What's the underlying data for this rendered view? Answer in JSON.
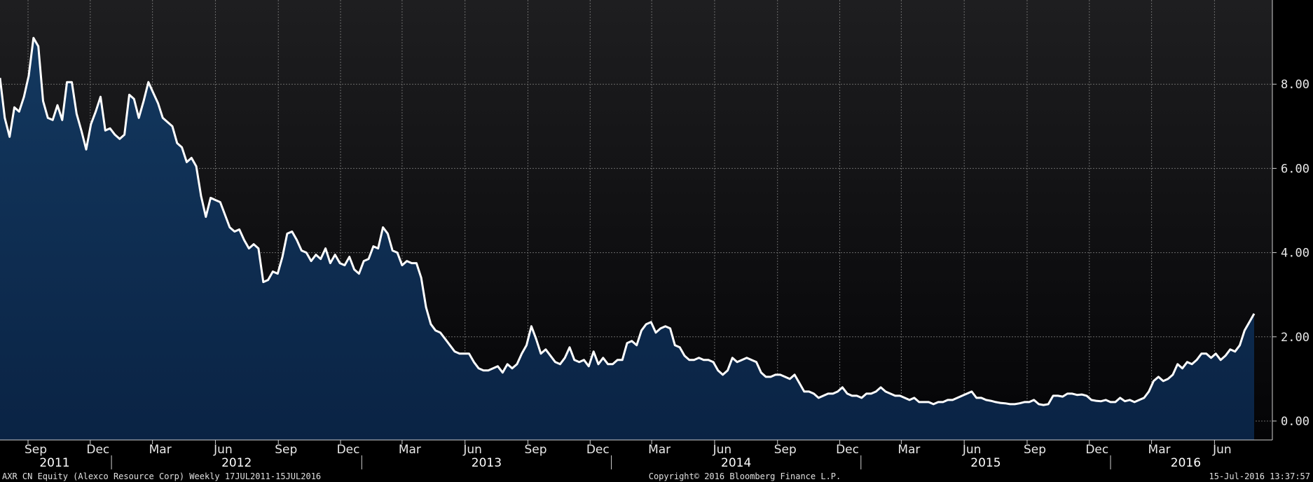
{
  "chart_data": {
    "type": "area",
    "x_start": "2011-07-22",
    "y_ticks": [
      0,
      2,
      4,
      6,
      8
    ],
    "y_tick_labels": [
      "0.00",
      "2.00",
      "4.00",
      "6.00",
      "8.00"
    ],
    "ylim": [
      -0.45,
      10.0
    ],
    "x_tick_labels": [
      {
        "label": "Sep",
        "date": "2011-09-01"
      },
      {
        "label": "Dec",
        "date": "2011-12-01"
      },
      {
        "label": "Mar",
        "date": "2012-03-01"
      },
      {
        "label": "Jun",
        "date": "2012-06-01"
      },
      {
        "label": "Sep",
        "date": "2012-09-01"
      },
      {
        "label": "Dec",
        "date": "2012-12-01"
      },
      {
        "label": "Mar",
        "date": "2013-03-01"
      },
      {
        "label": "Jun",
        "date": "2013-06-01"
      },
      {
        "label": "Sep",
        "date": "2013-09-01"
      },
      {
        "label": "Dec",
        "date": "2013-12-01"
      },
      {
        "label": "Mar",
        "date": "2014-03-01"
      },
      {
        "label": "Jun",
        "date": "2014-06-01"
      },
      {
        "label": "Sep",
        "date": "2014-09-01"
      },
      {
        "label": "Dec",
        "date": "2014-12-01"
      },
      {
        "label": "Mar",
        "date": "2015-03-01"
      },
      {
        "label": "Jun",
        "date": "2015-06-01"
      },
      {
        "label": "Sep",
        "date": "2015-09-01"
      },
      {
        "label": "Dec",
        "date": "2015-12-01"
      },
      {
        "label": "Mar",
        "date": "2016-03-01"
      },
      {
        "label": "Jun",
        "date": "2016-06-01"
      }
    ],
    "year_labels": [
      {
        "label": "2011",
        "date": "2011-07-22",
        "end": "2012-01-01"
      },
      {
        "label": "2012",
        "date": "2012-01-01",
        "end": "2013-01-01"
      },
      {
        "label": "2013",
        "date": "2013-01-01",
        "end": "2014-01-01"
      },
      {
        "label": "2014",
        "date": "2014-01-01",
        "end": "2015-01-01"
      },
      {
        "label": "2015",
        "date": "2015-01-01",
        "end": "2016-01-01"
      },
      {
        "label": "2016",
        "date": "2016-01-01",
        "end": "2016-08-08"
      }
    ],
    "grid": true,
    "values": [
      8.15,
      7.2,
      6.75,
      7.45,
      7.35,
      7.7,
      8.2,
      9.1,
      8.9,
      7.6,
      7.2,
      7.15,
      7.5,
      7.15,
      8.05,
      8.05,
      7.3,
      6.9,
      6.45,
      7.05,
      7.35,
      7.7,
      6.9,
      6.95,
      6.8,
      6.7,
      6.8,
      7.75,
      7.65,
      7.2,
      7.6,
      8.05,
      7.8,
      7.55,
      7.2,
      7.1,
      7.0,
      6.6,
      6.5,
      6.15,
      6.25,
      6.05,
      5.35,
      4.85,
      5.3,
      5.25,
      5.2,
      4.9,
      4.6,
      4.5,
      4.55,
      4.3,
      4.1,
      4.2,
      4.1,
      3.3,
      3.35,
      3.55,
      3.5,
      3.9,
      4.45,
      4.5,
      4.3,
      4.05,
      4.0,
      3.8,
      3.95,
      3.85,
      4.1,
      3.75,
      3.95,
      3.75,
      3.7,
      3.9,
      3.6,
      3.5,
      3.8,
      3.85,
      4.15,
      4.1,
      4.6,
      4.45,
      4.05,
      4.0,
      3.7,
      3.8,
      3.75,
      3.75,
      3.4,
      2.7,
      2.3,
      2.15,
      2.1,
      1.95,
      1.8,
      1.65,
      1.6,
      1.6,
      1.6,
      1.4,
      1.25,
      1.2,
      1.2,
      1.25,
      1.3,
      1.15,
      1.35,
      1.25,
      1.35,
      1.6,
      1.8,
      2.25,
      1.95,
      1.6,
      1.7,
      1.55,
      1.4,
      1.35,
      1.5,
      1.75,
      1.45,
      1.4,
      1.45,
      1.3,
      1.65,
      1.35,
      1.5,
      1.35,
      1.35,
      1.45,
      1.45,
      1.85,
      1.9,
      1.8,
      2.15,
      2.3,
      2.35,
      2.1,
      2.2,
      2.25,
      2.2,
      1.8,
      1.75,
      1.55,
      1.45,
      1.45,
      1.5,
      1.45,
      1.45,
      1.4,
      1.2,
      1.1,
      1.2,
      1.5,
      1.4,
      1.45,
      1.5,
      1.45,
      1.4,
      1.15,
      1.05,
      1.05,
      1.1,
      1.1,
      1.05,
      1.0,
      1.1,
      0.9,
      0.7,
      0.7,
      0.65,
      0.55,
      0.6,
      0.65,
      0.65,
      0.7,
      0.8,
      0.65,
      0.6,
      0.6,
      0.55,
      0.65,
      0.65,
      0.7,
      0.8,
      0.7,
      0.65,
      0.6,
      0.6,
      0.55,
      0.5,
      0.55,
      0.45,
      0.45,
      0.45,
      0.4,
      0.45,
      0.45,
      0.5,
      0.5,
      0.55,
      0.6,
      0.65,
      0.7,
      0.55,
      0.55,
      0.5,
      0.48,
      0.45,
      0.43,
      0.42,
      0.4,
      0.4,
      0.42,
      0.45,
      0.45,
      0.5,
      0.4,
      0.38,
      0.4,
      0.6,
      0.6,
      0.58,
      0.65,
      0.65,
      0.62,
      0.63,
      0.6,
      0.5,
      0.48,
      0.47,
      0.5,
      0.45,
      0.45,
      0.55,
      0.47,
      0.5,
      0.45,
      0.5,
      0.55,
      0.7,
      0.95,
      1.05,
      0.95,
      1.0,
      1.1,
      1.35,
      1.25,
      1.4,
      1.35,
      1.45,
      1.6,
      1.6,
      1.5,
      1.6,
      1.45,
      1.55,
      1.7,
      1.65,
      1.8,
      2.15,
      2.35,
      2.55
    ]
  },
  "footer": {
    "left": "AXR CN Equity (Alexco Resource Corp)  Weekly 17JUL2011-15JUL2016",
    "center": "Copyright© 2016 Bloomberg Finance L.P.",
    "right": "15-Jul-2016 13:37:57"
  },
  "colors": {
    "line": "#ffffff",
    "fill_top": "#11355c",
    "fill_bottom": "#0a2140",
    "grid": "#6b6b6b"
  }
}
